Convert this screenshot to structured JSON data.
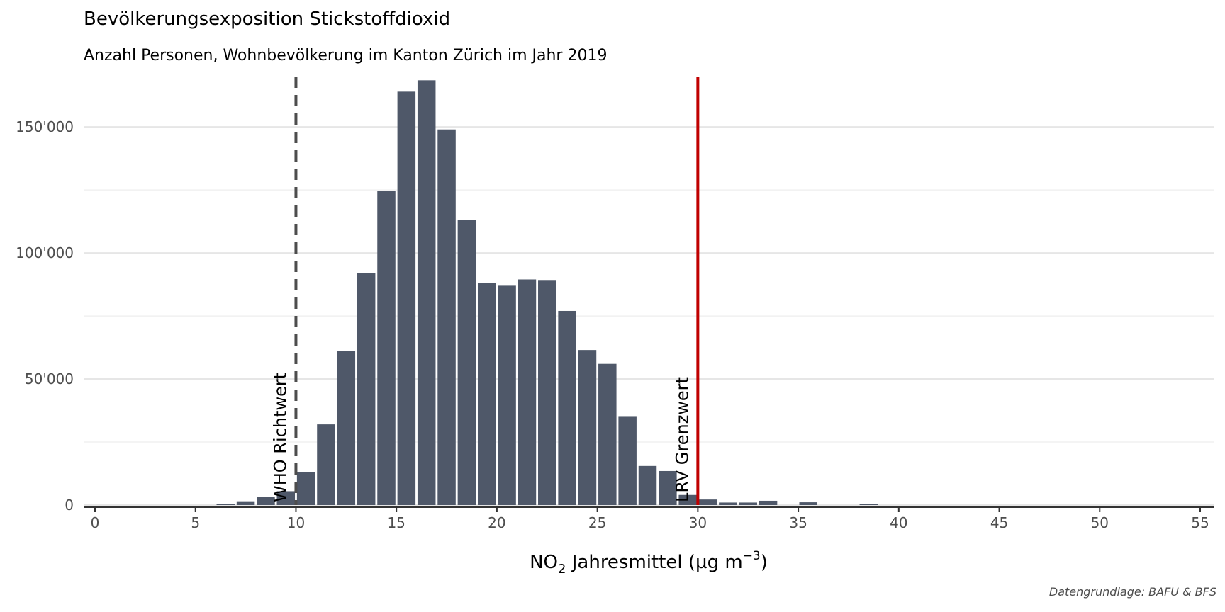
{
  "title": "Bevölkerungsexposition Stickstoffdioxid",
  "subtitle": "Anzahl Personen, Wohnbevölkerung im Kanton Zürich im Jahr 2019",
  "caption": "Datengrundlage: BAFU & BFS",
  "chart_data": {
    "type": "bar",
    "title": "Bevölkerungsexposition Stickstoffdioxid",
    "subtitle": "Anzahl Personen, Wohnbevölkerung im Kanton Zürich im Jahr 2019",
    "xlabel": {
      "pre": "NO",
      "sub": "2",
      "mid": " Jahresmittel (µg m",
      "sup": "−3",
      "post": ")"
    },
    "ylabel": "",
    "xlim": [
      0,
      55
    ],
    "ylim": [
      0,
      170000
    ],
    "x_ticks": [
      0,
      5,
      10,
      15,
      20,
      25,
      30,
      35,
      40,
      45,
      50,
      55
    ],
    "y_ticks": [
      0,
      50000,
      100000,
      150000
    ],
    "y_tick_labels": [
      "0",
      "50'000",
      "100'000",
      "150'000"
    ],
    "grid": "horizontal",
    "bar_color": "#4f5869",
    "bars": [
      {
        "x": 6.5,
        "y": 500
      },
      {
        "x": 7.5,
        "y": 1500
      },
      {
        "x": 8.5,
        "y": 3200
      },
      {
        "x": 9.5,
        "y": 5500
      },
      {
        "x": 10.5,
        "y": 13000
      },
      {
        "x": 11.5,
        "y": 32000
      },
      {
        "x": 12.5,
        "y": 61000
      },
      {
        "x": 13.5,
        "y": 92000
      },
      {
        "x": 14.5,
        "y": 124500
      },
      {
        "x": 15.5,
        "y": 164000
      },
      {
        "x": 16.5,
        "y": 168500
      },
      {
        "x": 17.5,
        "y": 149000
      },
      {
        "x": 18.5,
        "y": 113000
      },
      {
        "x": 19.5,
        "y": 88000
      },
      {
        "x": 20.5,
        "y": 87000
      },
      {
        "x": 21.5,
        "y": 89500
      },
      {
        "x": 22.5,
        "y": 89000
      },
      {
        "x": 23.5,
        "y": 77000
      },
      {
        "x": 24.5,
        "y": 61500
      },
      {
        "x": 25.5,
        "y": 56000
      },
      {
        "x": 26.5,
        "y": 35000
      },
      {
        "x": 27.5,
        "y": 15500
      },
      {
        "x": 28.5,
        "y": 13500
      },
      {
        "x": 29.5,
        "y": 4000
      },
      {
        "x": 30.5,
        "y": 2200
      },
      {
        "x": 31.5,
        "y": 1000
      },
      {
        "x": 32.5,
        "y": 1000
      },
      {
        "x": 33.5,
        "y": 1700
      },
      {
        "x": 35.5,
        "y": 1100
      },
      {
        "x": 38.5,
        "y": 400
      }
    ],
    "reference_lines": [
      {
        "x": 10,
        "label": "WHO Richtwert",
        "style": "dashed",
        "color": "#4d4d4d"
      },
      {
        "x": 30,
        "label": "LRV Grenzwert",
        "style": "solid",
        "color": "#c00000"
      }
    ]
  }
}
